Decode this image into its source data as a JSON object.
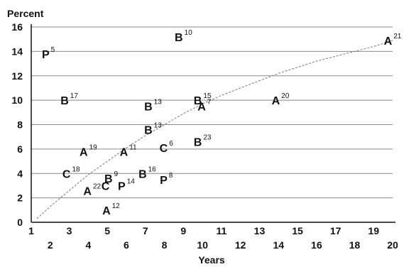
{
  "chart_data": {
    "type": "scatter",
    "ylabel": "Percent",
    "xlabel": "Years",
    "xlim": [
      1,
      20
    ],
    "ylim": [
      0,
      16
    ],
    "x_ticks_upper": [
      1,
      3,
      5,
      7,
      9,
      11,
      13,
      15,
      17,
      19
    ],
    "x_ticks_lower": [
      2,
      4,
      6,
      8,
      10,
      12,
      14,
      16,
      18,
      20
    ],
    "y_ticks": [
      0,
      2,
      4,
      6,
      8,
      10,
      12,
      14,
      16
    ],
    "grid": "horizontal",
    "points": [
      {
        "letter": "P",
        "sup": "5",
        "x": 1.9,
        "y": 13.8
      },
      {
        "letter": "B",
        "sup": "10",
        "x": 9.0,
        "y": 15.2
      },
      {
        "letter": "A",
        "sup": "21",
        "x": 20.0,
        "y": 14.9
      },
      {
        "letter": "B",
        "sup": "17",
        "x": 3.0,
        "y": 10.0
      },
      {
        "letter": "B",
        "sup": "13",
        "x": 7.4,
        "y": 9.5
      },
      {
        "letter": "B",
        "sup": "15",
        "x": 10.0,
        "y": 10.0
      },
      {
        "letter": "A",
        "sup": "7",
        "x": 10.1,
        "y": 9.5
      },
      {
        "letter": "A",
        "sup": "20",
        "x": 14.1,
        "y": 10.0
      },
      {
        "letter": "B",
        "sup": "13",
        "x": 7.4,
        "y": 7.6
      },
      {
        "letter": "B",
        "sup": "23",
        "x": 10.0,
        "y": 6.6
      },
      {
        "letter": "A",
        "sup": "19",
        "x": 4.0,
        "y": 5.8
      },
      {
        "letter": "A",
        "sup": "11",
        "x": 6.1,
        "y": 5.8
      },
      {
        "letter": "C",
        "sup": "6",
        "x": 8.1,
        "y": 6.1
      },
      {
        "letter": "C",
        "sup": "18",
        "x": 3.1,
        "y": 4.0
      },
      {
        "letter": "B",
        "sup": "9",
        "x": 5.2,
        "y": 3.6
      },
      {
        "letter": "B",
        "sup": "16",
        "x": 7.1,
        "y": 4.0
      },
      {
        "letter": "P",
        "sup": "8",
        "x": 8.1,
        "y": 3.5
      },
      {
        "letter": "A",
        "sup": "22",
        "x": 4.2,
        "y": 2.6
      },
      {
        "letter": "C",
        "sup": "",
        "x": 4.9,
        "y": 3.0
      },
      {
        "letter": "P",
        "sup": "14",
        "x": 6.0,
        "y": 3.0
      },
      {
        "letter": "A",
        "sup": "12",
        "x": 5.2,
        "y": 1.0
      }
    ],
    "curve": {
      "style": "dashed",
      "x": [
        1.3,
        2,
        3,
        4,
        5,
        6,
        7,
        8,
        9,
        10,
        11,
        12,
        13,
        14,
        15,
        16,
        17,
        18,
        19,
        20
      ],
      "y": [
        0.3,
        1.3,
        2.6,
        3.9,
        5.0,
        6.1,
        7.1,
        8.0,
        8.9,
        9.7,
        10.4,
        11.0,
        11.6,
        12.2,
        12.7,
        13.2,
        13.6,
        14.0,
        14.4,
        14.9
      ]
    }
  }
}
